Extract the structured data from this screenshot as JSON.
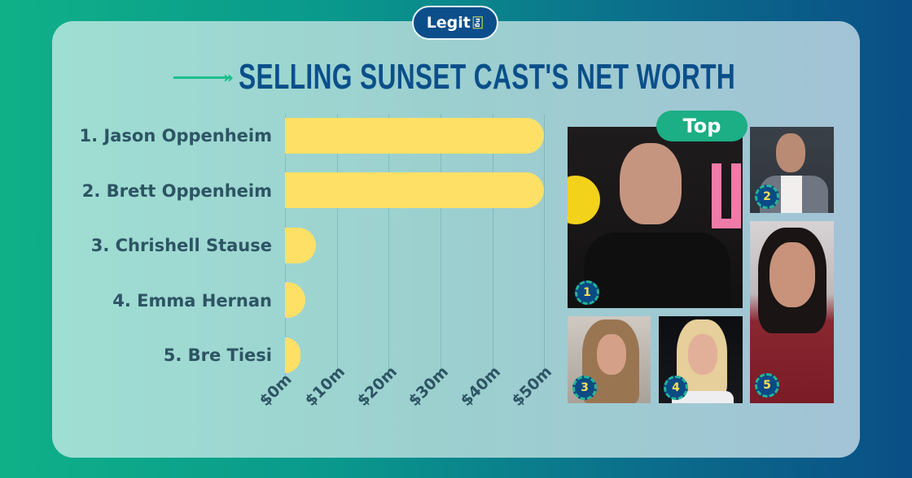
{
  "brand": {
    "logo_text": "Legit",
    "logo_suffix": "ng"
  },
  "header": {
    "title": "SELLING SUNSET CAST'S NET WORTH",
    "arrow_icon": "double-arrow-right"
  },
  "colors": {
    "bar": "#ffe066",
    "title": "#0b4f8a",
    "label": "#2d5464",
    "accent": "#1cae84",
    "badge": "#0b4a85"
  },
  "chart_data": {
    "type": "bar",
    "orientation": "horizontal",
    "title": "SELLING SUNSET CAST'S NET WORTH",
    "categories": [
      "1. Jason Oppenheim",
      "2. Brett Oppenheim",
      "3. Chrishell Stause",
      "4. Emma Hernan",
      "5. Bre Tiesi"
    ],
    "values": [
      50,
      50,
      6,
      4,
      3
    ],
    "unit": "$ million",
    "xlabel": "",
    "ylabel": "",
    "xlim": [
      0,
      50
    ],
    "xticks": [
      "$0m",
      "$10m",
      "$20m",
      "$30m",
      "$40m",
      "$50m"
    ],
    "grid": true,
    "legend": null
  },
  "photos": {
    "top_label": "Top",
    "items": [
      {
        "rank": "1",
        "name": "Jason Oppenheim"
      },
      {
        "rank": "2",
        "name": "Brett Oppenheim"
      },
      {
        "rank": "3",
        "name": "Chrishell Stause"
      },
      {
        "rank": "4",
        "name": "Emma Hernan"
      },
      {
        "rank": "5",
        "name": "Bre Tiesi"
      }
    ]
  }
}
